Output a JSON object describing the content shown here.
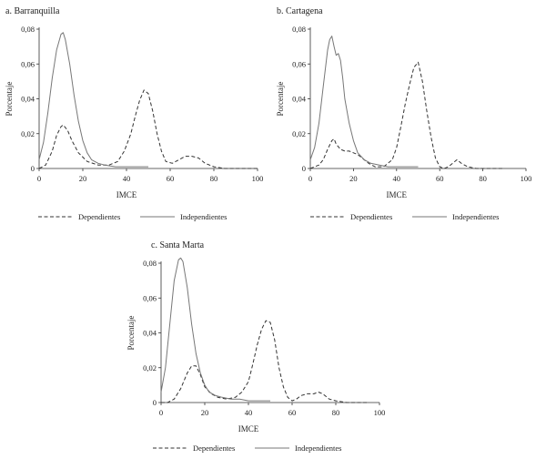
{
  "legend": {
    "dependientes": "Dependientes",
    "independientes": "Independientes"
  },
  "chart_data": [
    {
      "type": "line",
      "title": "a. Barranquilla",
      "xlabel": "IMCE",
      "ylabel": "Porcentaje",
      "xlim": [
        0,
        100
      ],
      "ylim": [
        0,
        0.08
      ],
      "xticks": [
        "0",
        "20",
        "40",
        "60",
        "80",
        "100"
      ],
      "yticks": [
        "0",
        "0,02",
        "0,04",
        "0,06",
        "0,08"
      ],
      "legend_position": "bottom",
      "series": [
        {
          "name": "Dependientes",
          "style": "dashed",
          "x": [
            0,
            3,
            6,
            8,
            10,
            11,
            13,
            15,
            18,
            22,
            27,
            32,
            36,
            39,
            42,
            44,
            46,
            48,
            50,
            52,
            54,
            56,
            58,
            61,
            64,
            67,
            70,
            73,
            76,
            80,
            85,
            90,
            95,
            100
          ],
          "y": [
            0,
            0.002,
            0.01,
            0.019,
            0.024,
            0.025,
            0.022,
            0.016,
            0.009,
            0.004,
            0.002,
            0.002,
            0.004,
            0.01,
            0.02,
            0.03,
            0.039,
            0.045,
            0.043,
            0.033,
            0.02,
            0.01,
            0.004,
            0.003,
            0.005,
            0.007,
            0.007,
            0.006,
            0.003,
            0.001,
            0,
            0,
            0,
            0
          ]
        },
        {
          "name": "Independientes",
          "style": "solid",
          "x": [
            0,
            2,
            4,
            6,
            8,
            10,
            11,
            12,
            14,
            16,
            18,
            20,
            22,
            24,
            27,
            30,
            35,
            40,
            45,
            50
          ],
          "y": [
            0.005,
            0.015,
            0.032,
            0.052,
            0.068,
            0.077,
            0.078,
            0.074,
            0.06,
            0.042,
            0.027,
            0.016,
            0.009,
            0.005,
            0.003,
            0.002,
            0.001,
            0.001,
            0.001,
            0.001
          ]
        }
      ]
    },
    {
      "type": "line",
      "title": "b. Cartagena",
      "xlabel": "IMCE",
      "ylabel": "Porcentaje",
      "xlim": [
        0,
        100
      ],
      "ylim": [
        0,
        0.08
      ],
      "xticks": [
        "0",
        "20",
        "40",
        "60",
        "80",
        "100"
      ],
      "yticks": [
        "0",
        "0,02",
        "0,04",
        "0,06",
        "0,08"
      ],
      "legend_position": "bottom",
      "series": [
        {
          "name": "Dependientes",
          "style": "dashed",
          "x": [
            0,
            4,
            6,
            8,
            10,
            11,
            12,
            14,
            16,
            18,
            20,
            22,
            24,
            27,
            30,
            34,
            38,
            40,
            42,
            44,
            46,
            48,
            50,
            52,
            54,
            56,
            58,
            60,
            62,
            64,
            66,
            68,
            70,
            73,
            77,
            82,
            86,
            90
          ],
          "y": [
            0,
            0.002,
            0.005,
            0.011,
            0.016,
            0.017,
            0.014,
            0.011,
            0.01,
            0.01,
            0.009,
            0.008,
            0.006,
            0.003,
            0.001,
            0.001,
            0.005,
            0.012,
            0.024,
            0.037,
            0.048,
            0.058,
            0.061,
            0.05,
            0.033,
            0.018,
            0.006,
            0.001,
            0,
            0.001,
            0.003,
            0.005,
            0.003,
            0.001,
            0,
            0,
            0,
            0
          ]
        },
        {
          "name": "Independientes",
          "style": "solid",
          "x": [
            0,
            2,
            4,
            6,
            8,
            9,
            10,
            11,
            12,
            13,
            14,
            15,
            16,
            18,
            20,
            22,
            25,
            28,
            32,
            36,
            40,
            45,
            50
          ],
          "y": [
            0.005,
            0.012,
            0.026,
            0.047,
            0.068,
            0.074,
            0.076,
            0.07,
            0.065,
            0.066,
            0.062,
            0.052,
            0.04,
            0.026,
            0.016,
            0.009,
            0.005,
            0.003,
            0.002,
            0.001,
            0.001,
            0.001,
            0.001
          ]
        }
      ]
    },
    {
      "type": "line",
      "title": "c. Santa Marta",
      "xlabel": "IMCE",
      "ylabel": "Porcentaje",
      "xlim": [
        0,
        100
      ],
      "ylim": [
        0,
        0.08
      ],
      "xticks": [
        "0",
        "20",
        "40",
        "60",
        "80",
        "100"
      ],
      "yticks": [
        "0",
        "0,02",
        "0,04",
        "0,06",
        "0,08"
      ],
      "legend_position": "bottom",
      "series": [
        {
          "name": "Dependientes",
          "style": "dashed",
          "x": [
            0,
            3,
            6,
            9,
            12,
            14,
            16,
            18,
            20,
            23,
            26,
            30,
            34,
            37,
            40,
            42,
            44,
            46,
            48,
            50,
            52,
            54,
            56,
            58,
            60,
            62,
            64,
            67,
            70,
            72,
            74,
            77,
            80,
            85,
            90,
            95
          ],
          "y": [
            0,
            0,
            0.002,
            0.008,
            0.017,
            0.021,
            0.021,
            0.016,
            0.009,
            0.005,
            0.003,
            0.002,
            0.003,
            0.006,
            0.012,
            0.022,
            0.033,
            0.042,
            0.047,
            0.046,
            0.036,
            0.02,
            0.009,
            0.003,
            0.001,
            0.002,
            0.004,
            0.005,
            0.005,
            0.006,
            0.005,
            0.002,
            0.001,
            0,
            0,
            0
          ]
        },
        {
          "name": "Independientes",
          "style": "solid",
          "x": [
            0,
            2,
            4,
            6,
            8,
            9,
            10,
            12,
            14,
            16,
            18,
            20,
            22,
            25,
            28,
            32,
            36,
            40,
            45,
            50
          ],
          "y": [
            0.006,
            0.02,
            0.045,
            0.07,
            0.082,
            0.083,
            0.081,
            0.066,
            0.045,
            0.028,
            0.017,
            0.01,
            0.006,
            0.004,
            0.003,
            0.002,
            0.002,
            0.001,
            0.001,
            0.001
          ]
        }
      ]
    }
  ]
}
